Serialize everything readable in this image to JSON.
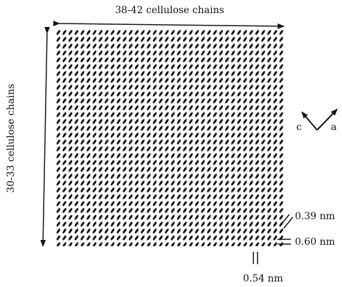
{
  "labels": {
    "top": "38-42 cellulose chains",
    "left": "30-33 cellulose chains",
    "c": "c",
    "a": "a",
    "spacing_1": "0.39 nm",
    "spacing_2": "0.60 nm",
    "spacing_3": "0.54 nm"
  }
}
